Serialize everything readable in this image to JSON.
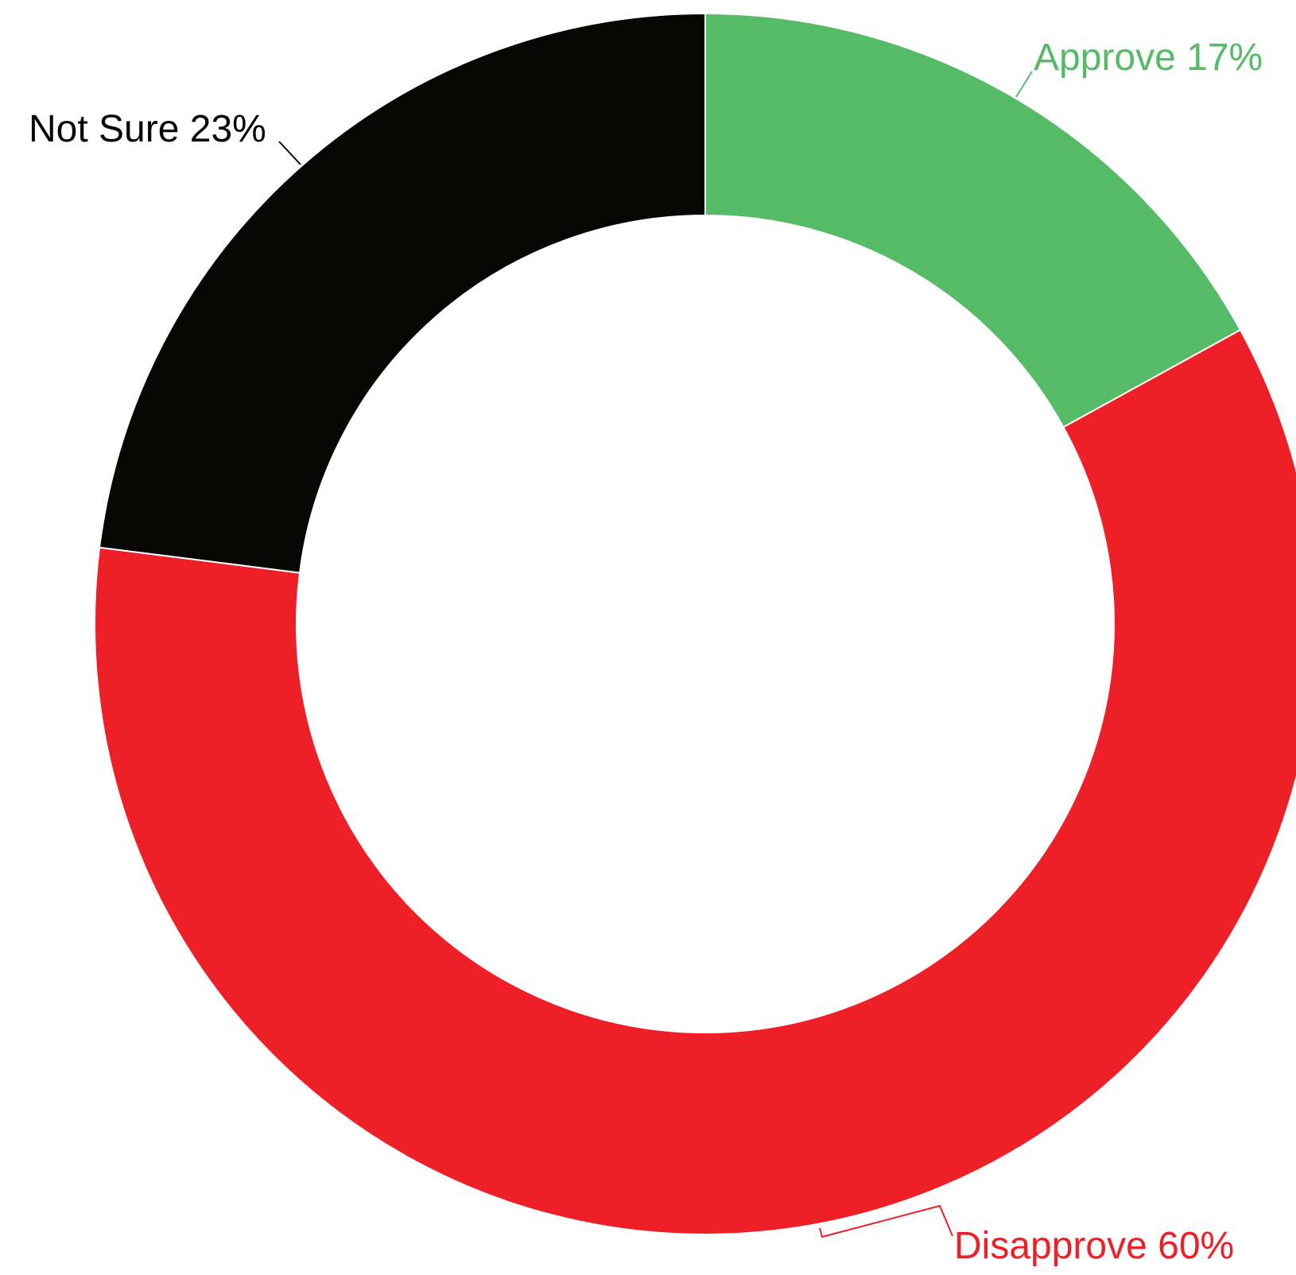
{
  "chart_data": {
    "type": "pie",
    "variant": "donut",
    "title": "",
    "slices": [
      {
        "label": "Approve",
        "value": 17,
        "display": "Approve 17%",
        "color": "#55bb66"
      },
      {
        "label": "Disapprove",
        "value": 60,
        "display": "Disapprove 60%",
        "color": "#ee1f27"
      },
      {
        "label": "Not Sure",
        "value": 23,
        "display": "Not Sure 23%",
        "color": "#060604"
      }
    ],
    "start": "12 o'clock",
    "direction": "clockwise"
  }
}
